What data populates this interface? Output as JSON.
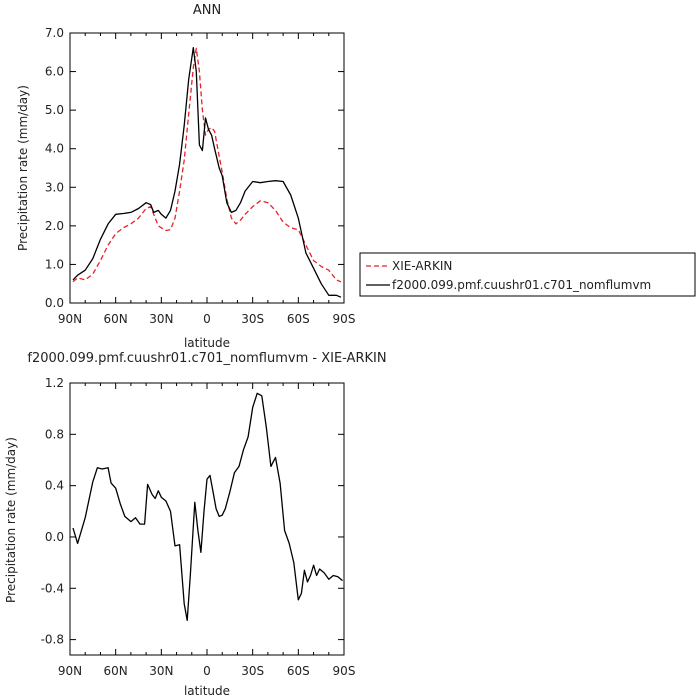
{
  "chart_data": [
    {
      "type": "line",
      "title": "ANN",
      "xlabel": "latitude",
      "ylabel": "Precipitation rate (mm/day)",
      "xticks": [
        "90N",
        "60N",
        "30N",
        "0",
        "30S",
        "60S",
        "90S"
      ],
      "yticks": [
        "0.0",
        "1.0",
        "2.0",
        "3.0",
        "4.0",
        "5.0",
        "6.0",
        "7.0"
      ],
      "xlim": [
        -90,
        90
      ],
      "ylim": [
        0,
        7
      ],
      "legend_position": "right",
      "series": [
        {
          "name": "XIE-ARKIN",
          "color": "#e8212b",
          "dash": "dashed",
          "x": [
            -88,
            -85,
            -80,
            -75,
            -70,
            -65,
            -60,
            -55,
            -50,
            -45,
            -40,
            -37,
            -35,
            -32,
            -30,
            -27,
            -24,
            -21,
            -18,
            -15,
            -12,
            -9,
            -7,
            -5,
            -3,
            -1,
            1,
            3,
            5,
            8,
            10,
            13,
            16,
            19,
            22,
            25,
            30,
            35,
            40,
            45,
            50,
            55,
            60,
            65,
            70,
            75,
            80,
            85,
            88
          ],
          "y": [
            0.55,
            0.65,
            0.6,
            0.75,
            1.1,
            1.5,
            1.8,
            1.95,
            2.05,
            2.2,
            2.45,
            2.5,
            2.3,
            2.0,
            1.95,
            1.88,
            1.9,
            2.2,
            2.9,
            3.7,
            4.9,
            6.1,
            6.6,
            6.0,
            5.0,
            4.35,
            4.5,
            4.55,
            4.45,
            3.8,
            3.4,
            2.7,
            2.2,
            2.05,
            2.15,
            2.3,
            2.5,
            2.65,
            2.6,
            2.4,
            2.1,
            1.95,
            1.9,
            1.5,
            1.1,
            0.95,
            0.85,
            0.6,
            0.55
          ]
        },
        {
          "name": "f2000.099.pmf.cuushr01.c701_nomflumvm",
          "color": "#000000",
          "dash": "solid",
          "x": [
            -88,
            -85,
            -80,
            -75,
            -70,
            -65,
            -60,
            -55,
            -50,
            -45,
            -40,
            -37,
            -35,
            -32,
            -30,
            -27,
            -24,
            -21,
            -18,
            -15,
            -12,
            -9,
            -7,
            -5,
            -3,
            -1,
            1,
            3,
            5,
            8,
            10,
            13,
            16,
            19,
            22,
            25,
            30,
            35,
            40,
            45,
            50,
            55,
            60,
            65,
            70,
            75,
            80,
            85,
            88
          ],
          "y": [
            0.6,
            0.72,
            0.85,
            1.15,
            1.65,
            2.05,
            2.3,
            2.32,
            2.35,
            2.45,
            2.6,
            2.55,
            2.35,
            2.4,
            2.3,
            2.2,
            2.4,
            2.9,
            3.6,
            4.6,
            5.8,
            6.62,
            6.0,
            4.1,
            3.95,
            4.8,
            4.5,
            4.35,
            4.0,
            3.5,
            3.3,
            2.6,
            2.35,
            2.4,
            2.6,
            2.9,
            3.15,
            3.12,
            3.15,
            3.17,
            3.15,
            2.8,
            2.2,
            1.3,
            0.9,
            0.5,
            0.2,
            0.2,
            0.15
          ]
        }
      ]
    },
    {
      "type": "line",
      "title": "f2000.099.pmf.cuushr01.c701_nomflumvm - XIE-ARKIN",
      "xlabel": "latitude",
      "ylabel": "Precipitation rate (mm/day)",
      "xticks": [
        "90N",
        "60N",
        "30N",
        "0",
        "30S",
        "60S",
        "90S"
      ],
      "yticks": [
        "-0.8",
        "-0.4",
        "0.0",
        "0.4",
        "0.8",
        "1.2"
      ],
      "xlim": [
        -90,
        90
      ],
      "ylim": [
        -0.92,
        1.2
      ],
      "series": [
        {
          "color": "#000000",
          "x": [
            -88,
            -85,
            -80,
            -75,
            -72,
            -69,
            -65,
            -63,
            -60,
            -57,
            -54,
            -50,
            -47,
            -44,
            -41,
            -39,
            -36,
            -34,
            -32,
            -30,
            -27,
            -24,
            -21,
            -18,
            -15,
            -13,
            -11,
            -8,
            -6,
            -4,
            -2,
            0,
            2,
            4,
            6,
            8,
            10,
            12,
            15,
            18,
            21,
            24,
            27,
            30,
            33,
            36,
            39,
            42,
            45,
            48,
            51,
            54,
            57,
            60,
            62,
            64,
            66,
            68,
            70,
            72,
            74,
            77,
            80,
            83,
            86,
            89
          ],
          "y": [
            0.07,
            -0.05,
            0.15,
            0.43,
            0.54,
            0.53,
            0.54,
            0.42,
            0.38,
            0.26,
            0.16,
            0.12,
            0.15,
            0.1,
            0.1,
            0.41,
            0.33,
            0.3,
            0.36,
            0.31,
            0.28,
            0.2,
            -0.07,
            -0.06,
            -0.52,
            -0.65,
            -0.3,
            0.27,
            0.05,
            -0.12,
            0.2,
            0.45,
            0.48,
            0.35,
            0.22,
            0.16,
            0.17,
            0.22,
            0.35,
            0.5,
            0.55,
            0.68,
            0.78,
            1.01,
            1.12,
            1.1,
            0.85,
            0.55,
            0.62,
            0.42,
            0.05,
            -0.05,
            -0.2,
            -0.49,
            -0.44,
            -0.26,
            -0.35,
            -0.3,
            -0.22,
            -0.3,
            -0.25,
            -0.28,
            -0.33,
            -0.3,
            -0.31,
            -0.34
          ]
        }
      ]
    }
  ]
}
